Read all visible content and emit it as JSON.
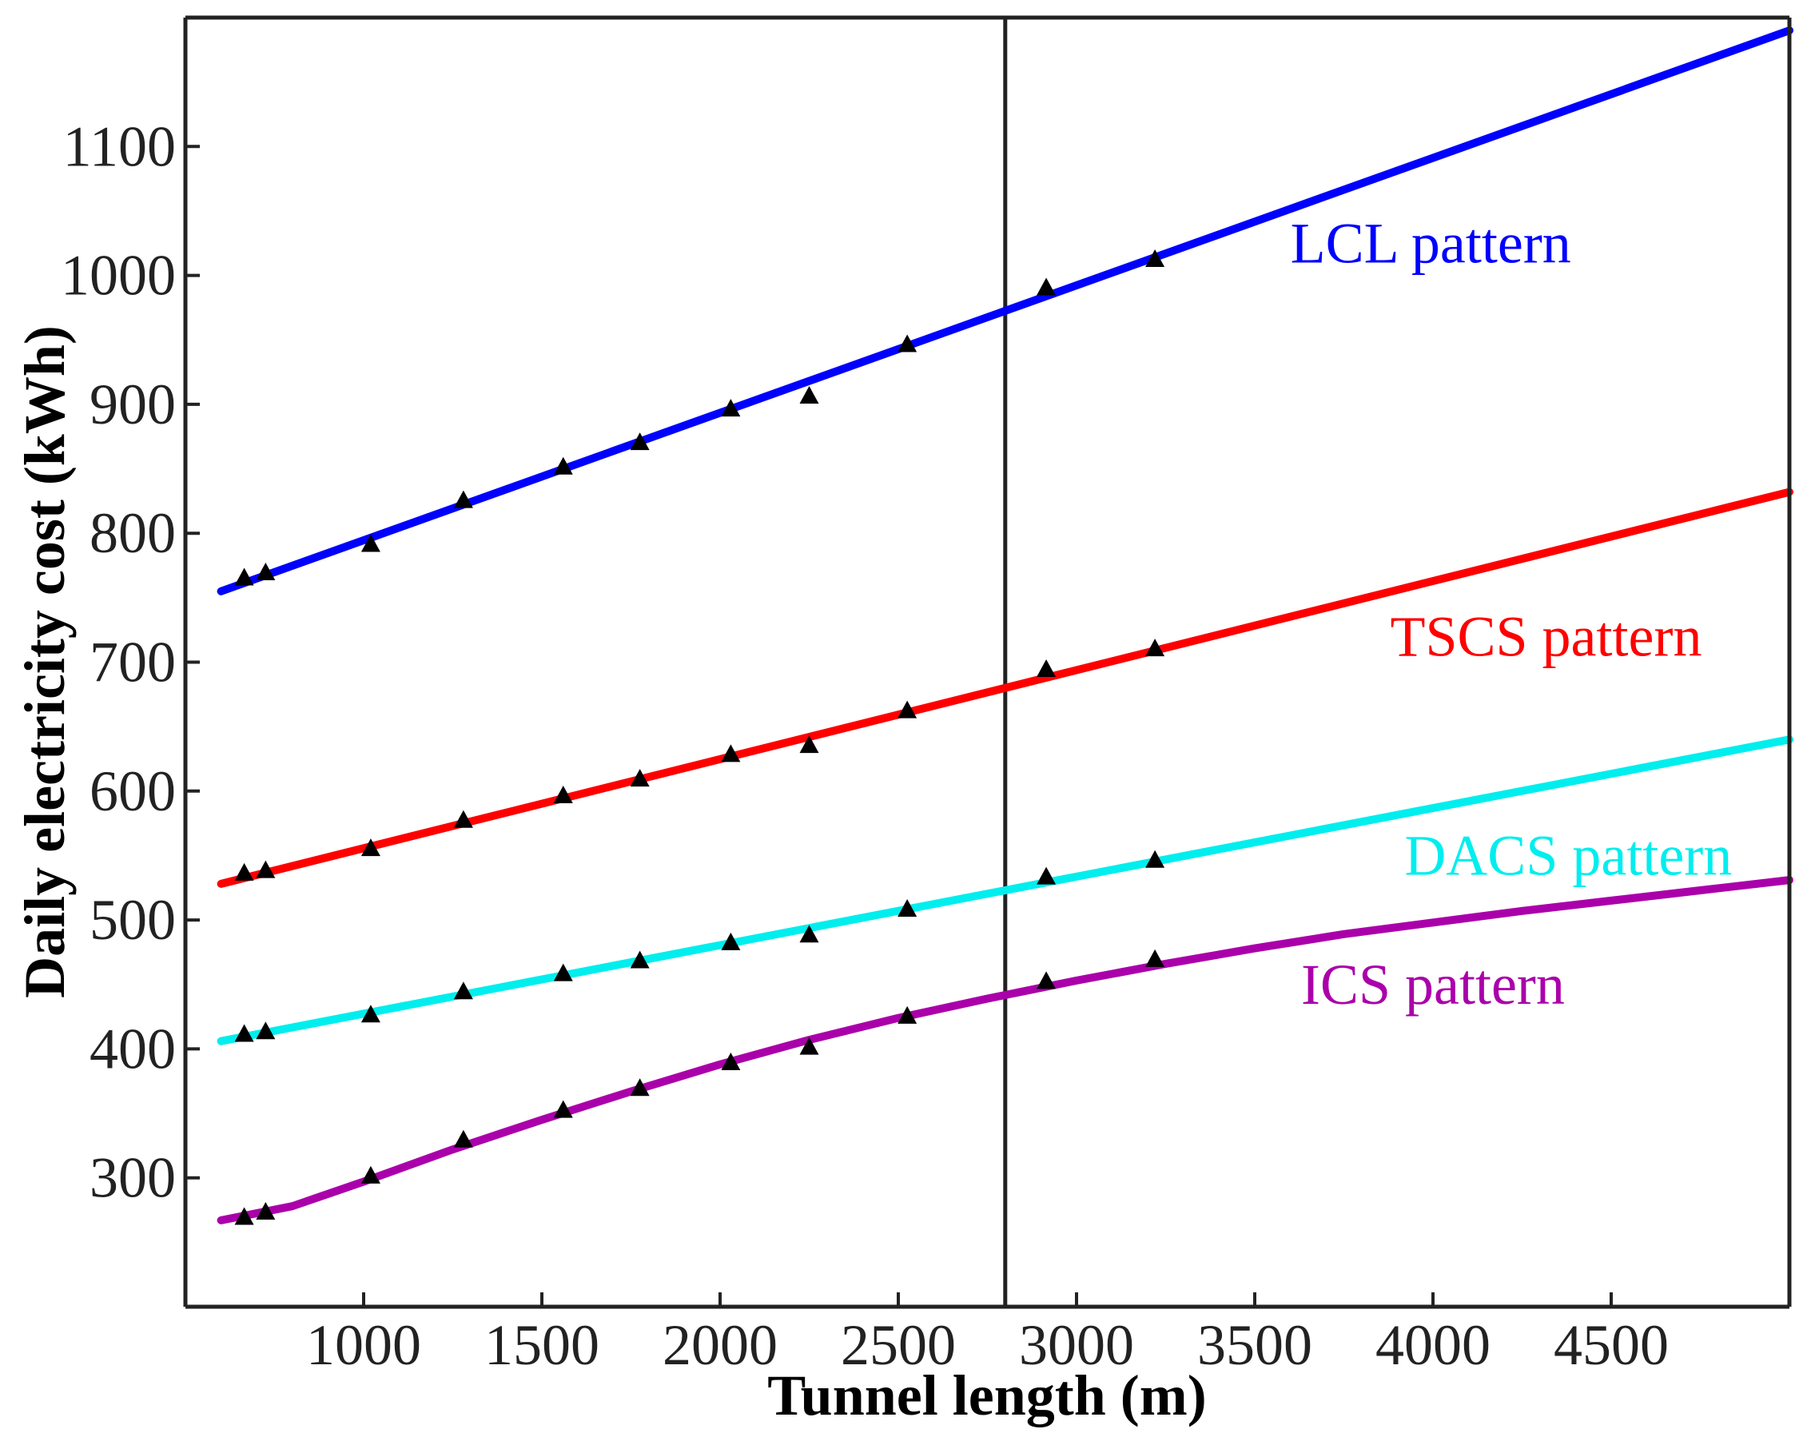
{
  "chart_data": {
    "type": "line",
    "title": "",
    "xlabel": "Tunnel length (m)",
    "ylabel": "Daily electricity cost (kWh)",
    "xlim": [
      500,
      5000
    ],
    "ylim": [
      200,
      1200
    ],
    "xticks": [
      1000,
      1500,
      2000,
      2500,
      3000,
      3500,
      4000,
      4500
    ],
    "yticks": [
      300,
      400,
      500,
      600,
      700,
      800,
      900,
      1000,
      1100
    ],
    "vline_x": 2800,
    "grid": false,
    "series": [
      {
        "name": "LCL pattern",
        "color": "#0000ff",
        "fit_x": [
          600,
          5000
        ],
        "fit_y": [
          755,
          1190
        ],
        "points_x": [
          665,
          725,
          1020,
          1280,
          1560,
          1775,
          2030,
          2250,
          2525,
          2915,
          3220
        ],
        "points_y": [
          765,
          769,
          791,
          825,
          851,
          870,
          896,
          906,
          946,
          990,
          1012
        ]
      },
      {
        "name": "TSCS pattern",
        "color": "#ff0000",
        "fit_x": [
          600,
          5000
        ],
        "fit_y": [
          528,
          832
        ],
        "points_x": [
          665,
          725,
          1020,
          1280,
          1560,
          1775,
          2030,
          2250,
          2525,
          2915,
          3220
        ],
        "points_y": [
          536,
          538,
          555,
          577,
          596,
          609,
          628,
          635,
          662,
          694,
          710
        ]
      },
      {
        "name": "DACS pattern",
        "color": "#00eeee",
        "fit_x": [
          600,
          5000
        ],
        "fit_y": [
          406,
          640
        ],
        "points_x": [
          665,
          725,
          1020,
          1280,
          1560,
          1775,
          2030,
          2250,
          2525,
          2915,
          3220
        ],
        "points_y": [
          411,
          413,
          426,
          444,
          458,
          468,
          482,
          488,
          508,
          533,
          546
        ]
      },
      {
        "name": "ICS pattern",
        "color": "#aa00aa",
        "fit_x": [
          600,
          800,
          1000,
          1250,
          1500,
          1750,
          2000,
          2250,
          2500,
          2750,
          3000,
          3250,
          3500,
          3750,
          4000,
          4250,
          4500,
          4750,
          5000
        ],
        "fit_y": [
          267,
          278,
          297,
          322,
          345,
          367,
          388,
          407,
          424,
          439,
          453,
          466,
          478,
          489,
          498,
          507,
          515,
          523,
          531
        ],
        "points_x": [
          665,
          725,
          1020,
          1280,
          1560,
          1775,
          2030,
          2250,
          2525,
          2915,
          3220
        ],
        "points_y": [
          269,
          273,
          301,
          329,
          352,
          369,
          389,
          401,
          425,
          452,
          469
        ]
      }
    ],
    "annotations": [
      {
        "text": "LCL pattern",
        "series": "LCL pattern",
        "x": 3600,
        "y": 1010
      },
      {
        "text": "TSCS pattern",
        "series": "TSCS pattern",
        "x": 3880,
        "y": 705
      },
      {
        "text": "DACS pattern",
        "series": "DACS pattern",
        "x": 3920,
        "y": 535
      },
      {
        "text": "ICS pattern",
        "series": "ICS pattern",
        "x": 3630,
        "y": 435
      }
    ]
  }
}
